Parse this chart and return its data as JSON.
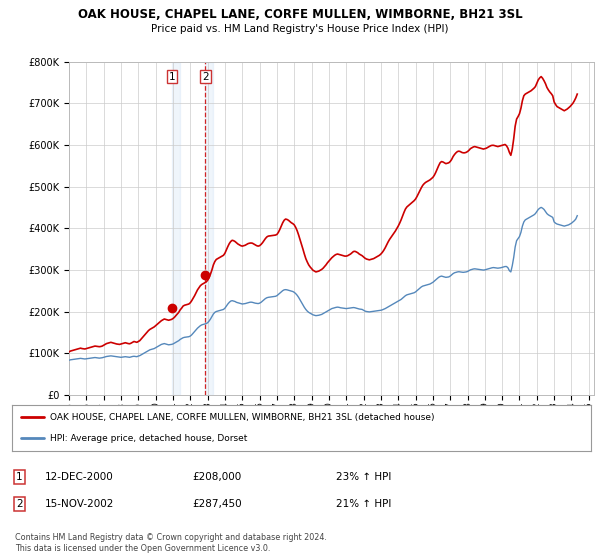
{
  "title": "OAK HOUSE, CHAPEL LANE, CORFE MULLEN, WIMBORNE, BH21 3SL",
  "subtitle": "Price paid vs. HM Land Registry's House Price Index (HPI)",
  "footer": "Contains HM Land Registry data © Crown copyright and database right 2024.\nThis data is licensed under the Open Government Licence v3.0.",
  "legend_line1": "OAK HOUSE, CHAPEL LANE, CORFE MULLEN, WIMBORNE, BH21 3SL (detached house)",
  "legend_line2": "HPI: Average price, detached house, Dorset",
  "sale1_label": "1",
  "sale1_date": "12-DEC-2000",
  "sale1_price": "£208,000",
  "sale1_hpi": "23% ↑ HPI",
  "sale1_year": 2000.917,
  "sale1_value": 208000,
  "sale2_label": "2",
  "sale2_date": "15-NOV-2002",
  "sale2_price": "£287,450",
  "sale2_hpi": "21% ↑ HPI",
  "sale2_year": 2002.833,
  "sale2_value": 287450,
  "red_color": "#cc0000",
  "blue_color": "#5588bb",
  "shade_color": "#ddeeff",
  "background_color": "#ffffff",
  "grid_color": "#cccccc",
  "ylim": [
    0,
    800000
  ],
  "yticks": [
    0,
    100000,
    200000,
    300000,
    400000,
    500000,
    600000,
    700000,
    800000
  ],
  "hpi_x": [
    1995.0,
    1995.083,
    1995.167,
    1995.25,
    1995.333,
    1995.417,
    1995.5,
    1995.583,
    1995.667,
    1995.75,
    1995.833,
    1995.917,
    1996.0,
    1996.083,
    1996.167,
    1996.25,
    1996.333,
    1996.417,
    1996.5,
    1996.583,
    1996.667,
    1996.75,
    1996.833,
    1996.917,
    1997.0,
    1997.083,
    1997.167,
    1997.25,
    1997.333,
    1997.417,
    1997.5,
    1997.583,
    1997.667,
    1997.75,
    1997.833,
    1997.917,
    1998.0,
    1998.083,
    1998.167,
    1998.25,
    1998.333,
    1998.417,
    1998.5,
    1998.583,
    1998.667,
    1998.75,
    1998.833,
    1998.917,
    1999.0,
    1999.083,
    1999.167,
    1999.25,
    1999.333,
    1999.417,
    1999.5,
    1999.583,
    1999.667,
    1999.75,
    1999.833,
    1999.917,
    2000.0,
    2000.083,
    2000.167,
    2000.25,
    2000.333,
    2000.417,
    2000.5,
    2000.583,
    2000.667,
    2000.75,
    2000.833,
    2000.917,
    2001.0,
    2001.083,
    2001.167,
    2001.25,
    2001.333,
    2001.417,
    2001.5,
    2001.583,
    2001.667,
    2001.75,
    2001.833,
    2001.917,
    2002.0,
    2002.083,
    2002.167,
    2002.25,
    2002.333,
    2002.417,
    2002.5,
    2002.583,
    2002.667,
    2002.75,
    2002.833,
    2002.917,
    2003.0,
    2003.083,
    2003.167,
    2003.25,
    2003.333,
    2003.417,
    2003.5,
    2003.583,
    2003.667,
    2003.75,
    2003.833,
    2003.917,
    2004.0,
    2004.083,
    2004.167,
    2004.25,
    2004.333,
    2004.417,
    2004.5,
    2004.583,
    2004.667,
    2004.75,
    2004.833,
    2004.917,
    2005.0,
    2005.083,
    2005.167,
    2005.25,
    2005.333,
    2005.417,
    2005.5,
    2005.583,
    2005.667,
    2005.75,
    2005.833,
    2005.917,
    2006.0,
    2006.083,
    2006.167,
    2006.25,
    2006.333,
    2006.417,
    2006.5,
    2006.583,
    2006.667,
    2006.75,
    2006.833,
    2006.917,
    2007.0,
    2007.083,
    2007.167,
    2007.25,
    2007.333,
    2007.417,
    2007.5,
    2007.583,
    2007.667,
    2007.75,
    2007.833,
    2007.917,
    2008.0,
    2008.083,
    2008.167,
    2008.25,
    2008.333,
    2008.417,
    2008.5,
    2008.583,
    2008.667,
    2008.75,
    2008.833,
    2008.917,
    2009.0,
    2009.083,
    2009.167,
    2009.25,
    2009.333,
    2009.417,
    2009.5,
    2009.583,
    2009.667,
    2009.75,
    2009.833,
    2009.917,
    2010.0,
    2010.083,
    2010.167,
    2010.25,
    2010.333,
    2010.417,
    2010.5,
    2010.583,
    2010.667,
    2010.75,
    2010.833,
    2010.917,
    2011.0,
    2011.083,
    2011.167,
    2011.25,
    2011.333,
    2011.417,
    2011.5,
    2011.583,
    2011.667,
    2011.75,
    2011.833,
    2011.917,
    2012.0,
    2012.083,
    2012.167,
    2012.25,
    2012.333,
    2012.417,
    2012.5,
    2012.583,
    2012.667,
    2012.75,
    2012.833,
    2012.917,
    2013.0,
    2013.083,
    2013.167,
    2013.25,
    2013.333,
    2013.417,
    2013.5,
    2013.583,
    2013.667,
    2013.75,
    2013.833,
    2013.917,
    2014.0,
    2014.083,
    2014.167,
    2014.25,
    2014.333,
    2014.417,
    2014.5,
    2014.583,
    2014.667,
    2014.75,
    2014.833,
    2014.917,
    2015.0,
    2015.083,
    2015.167,
    2015.25,
    2015.333,
    2015.417,
    2015.5,
    2015.583,
    2015.667,
    2015.75,
    2015.833,
    2015.917,
    2016.0,
    2016.083,
    2016.167,
    2016.25,
    2016.333,
    2016.417,
    2016.5,
    2016.583,
    2016.667,
    2016.75,
    2016.833,
    2016.917,
    2017.0,
    2017.083,
    2017.167,
    2017.25,
    2017.333,
    2017.417,
    2017.5,
    2017.583,
    2017.667,
    2017.75,
    2017.833,
    2017.917,
    2018.0,
    2018.083,
    2018.167,
    2018.25,
    2018.333,
    2018.417,
    2018.5,
    2018.583,
    2018.667,
    2018.75,
    2018.833,
    2018.917,
    2019.0,
    2019.083,
    2019.167,
    2019.25,
    2019.333,
    2019.417,
    2019.5,
    2019.583,
    2019.667,
    2019.75,
    2019.833,
    2019.917,
    2020.0,
    2020.083,
    2020.167,
    2020.25,
    2020.333,
    2020.417,
    2020.5,
    2020.583,
    2020.667,
    2020.75,
    2020.833,
    2020.917,
    2021.0,
    2021.083,
    2021.167,
    2021.25,
    2021.333,
    2021.417,
    2021.5,
    2021.583,
    2021.667,
    2021.75,
    2021.833,
    2021.917,
    2022.0,
    2022.083,
    2022.167,
    2022.25,
    2022.333,
    2022.417,
    2022.5,
    2022.583,
    2022.667,
    2022.75,
    2022.833,
    2022.917,
    2023.0,
    2023.083,
    2023.167,
    2023.25,
    2023.333,
    2023.417,
    2023.5,
    2023.583,
    2023.667,
    2023.75,
    2023.833,
    2023.917,
    2024.0,
    2024.083,
    2024.167,
    2024.25,
    2024.333
  ],
  "hpi_y": [
    83000,
    84000,
    84500,
    85000,
    85500,
    86000,
    86500,
    87000,
    87500,
    87000,
    86500,
    86000,
    86500,
    87000,
    87500,
    88000,
    88500,
    89000,
    89500,
    89000,
    88500,
    88000,
    88500,
    89000,
    90000,
    91000,
    92000,
    92500,
    93000,
    93500,
    93000,
    92500,
    92000,
    91500,
    91000,
    90500,
    90000,
    90500,
    91000,
    91500,
    91000,
    90500,
    90000,
    91000,
    92000,
    92500,
    92000,
    91500,
    93000,
    94000,
    96000,
    98000,
    100000,
    102000,
    104000,
    106000,
    108000,
    109000,
    110000,
    111000,
    113000,
    115000,
    117000,
    119000,
    121000,
    122000,
    123000,
    122000,
    121000,
    120000,
    120500,
    121000,
    122000,
    124000,
    126000,
    128000,
    130000,
    133000,
    135000,
    137000,
    138000,
    138500,
    139000,
    139500,
    141000,
    144000,
    148000,
    152000,
    156000,
    160000,
    163000,
    166000,
    168000,
    169000,
    170000,
    171000,
    173000,
    177000,
    182000,
    188000,
    194000,
    198000,
    200000,
    201000,
    202000,
    203000,
    204000,
    205000,
    208000,
    213000,
    218000,
    222000,
    225000,
    226000,
    225000,
    224000,
    222000,
    221000,
    220000,
    219000,
    218000,
    218500,
    219000,
    220000,
    221000,
    222000,
    222500,
    222000,
    221000,
    220000,
    219500,
    219000,
    220000,
    222000,
    225000,
    228000,
    231000,
    233000,
    234000,
    234500,
    235000,
    235500,
    236000,
    236500,
    238000,
    241000,
    244000,
    247000,
    250000,
    252000,
    252500,
    252000,
    251000,
    250000,
    249000,
    248000,
    246000,
    243000,
    239000,
    234000,
    228000,
    222000,
    216000,
    210000,
    205000,
    201000,
    198000,
    196000,
    194000,
    192000,
    191000,
    190000,
    190500,
    191000,
    192000,
    193000,
    195000,
    197000,
    199000,
    201000,
    203000,
    205000,
    207000,
    208000,
    209000,
    210000,
    210500,
    210000,
    209000,
    208500,
    208000,
    207500,
    207000,
    207500,
    208000,
    208500,
    209000,
    209500,
    209000,
    208000,
    207000,
    206000,
    205500,
    205000,
    203000,
    201000,
    200000,
    199500,
    199000,
    199500,
    200000,
    200500,
    201000,
    201500,
    202000,
    202500,
    203000,
    204000,
    205500,
    207000,
    209000,
    211000,
    213000,
    215000,
    217000,
    219000,
    221000,
    223000,
    225000,
    227000,
    229000,
    232000,
    235000,
    238000,
    240000,
    241000,
    242000,
    243000,
    244000,
    245000,
    247000,
    250000,
    253000,
    256000,
    259000,
    261000,
    262000,
    263000,
    264000,
    265000,
    266000,
    268000,
    270000,
    273000,
    276000,
    279000,
    282000,
    284000,
    285000,
    284000,
    283000,
    282000,
    282500,
    283000,
    285000,
    288000,
    291000,
    293000,
    294000,
    295000,
    295500,
    295000,
    294500,
    294000,
    294500,
    295000,
    296000,
    298000,
    300000,
    301000,
    302000,
    302500,
    302000,
    301500,
    301000,
    300500,
    300000,
    299500,
    300000,
    301000,
    302000,
    303000,
    304000,
    305000,
    305500,
    305000,
    304500,
    304000,
    304500,
    305000,
    306000,
    307000,
    308000,
    308000,
    305000,
    298000,
    295000,
    310000,
    330000,
    355000,
    370000,
    375000,
    380000,
    390000,
    405000,
    415000,
    420000,
    422000,
    424000,
    426000,
    428000,
    430000,
    432000,
    435000,
    440000,
    445000,
    448000,
    450000,
    448000,
    445000,
    440000,
    435000,
    432000,
    430000,
    428000,
    426000,
    415000,
    412000,
    410000,
    409000,
    408000,
    407000,
    406000,
    405000,
    406000,
    407000,
    408000,
    410000,
    412000,
    415000,
    418000,
    422000,
    430000
  ],
  "price_x": [
    1995.0,
    1995.083,
    1995.167,
    1995.25,
    1995.333,
    1995.417,
    1995.5,
    1995.583,
    1995.667,
    1995.75,
    1995.833,
    1995.917,
    1996.0,
    1996.083,
    1996.167,
    1996.25,
    1996.333,
    1996.417,
    1996.5,
    1996.583,
    1996.667,
    1996.75,
    1996.833,
    1996.917,
    1997.0,
    1997.083,
    1997.167,
    1997.25,
    1997.333,
    1997.417,
    1997.5,
    1997.583,
    1997.667,
    1997.75,
    1997.833,
    1997.917,
    1998.0,
    1998.083,
    1998.167,
    1998.25,
    1998.333,
    1998.417,
    1998.5,
    1998.583,
    1998.667,
    1998.75,
    1998.833,
    1998.917,
    1999.0,
    1999.083,
    1999.167,
    1999.25,
    1999.333,
    1999.417,
    1999.5,
    1999.583,
    1999.667,
    1999.75,
    1999.833,
    1999.917,
    2000.0,
    2000.083,
    2000.167,
    2000.25,
    2000.333,
    2000.417,
    2000.5,
    2000.583,
    2000.667,
    2000.75,
    2000.833,
    2000.917,
    2001.0,
    2001.083,
    2001.167,
    2001.25,
    2001.333,
    2001.417,
    2001.5,
    2001.583,
    2001.667,
    2001.75,
    2001.833,
    2001.917,
    2002.0,
    2002.083,
    2002.167,
    2002.25,
    2002.333,
    2002.417,
    2002.5,
    2002.583,
    2002.667,
    2002.75,
    2002.833,
    2002.917,
    2003.0,
    2003.083,
    2003.167,
    2003.25,
    2003.333,
    2003.417,
    2003.5,
    2003.583,
    2003.667,
    2003.75,
    2003.833,
    2003.917,
    2004.0,
    2004.083,
    2004.167,
    2004.25,
    2004.333,
    2004.417,
    2004.5,
    2004.583,
    2004.667,
    2004.75,
    2004.833,
    2004.917,
    2005.0,
    2005.083,
    2005.167,
    2005.25,
    2005.333,
    2005.417,
    2005.5,
    2005.583,
    2005.667,
    2005.75,
    2005.833,
    2005.917,
    2006.0,
    2006.083,
    2006.167,
    2006.25,
    2006.333,
    2006.417,
    2006.5,
    2006.583,
    2006.667,
    2006.75,
    2006.833,
    2006.917,
    2007.0,
    2007.083,
    2007.167,
    2007.25,
    2007.333,
    2007.417,
    2007.5,
    2007.583,
    2007.667,
    2007.75,
    2007.833,
    2007.917,
    2008.0,
    2008.083,
    2008.167,
    2008.25,
    2008.333,
    2008.417,
    2008.5,
    2008.583,
    2008.667,
    2008.75,
    2008.833,
    2008.917,
    2009.0,
    2009.083,
    2009.167,
    2009.25,
    2009.333,
    2009.417,
    2009.5,
    2009.583,
    2009.667,
    2009.75,
    2009.833,
    2009.917,
    2010.0,
    2010.083,
    2010.167,
    2010.25,
    2010.333,
    2010.417,
    2010.5,
    2010.583,
    2010.667,
    2010.75,
    2010.833,
    2010.917,
    2011.0,
    2011.083,
    2011.167,
    2011.25,
    2011.333,
    2011.417,
    2011.5,
    2011.583,
    2011.667,
    2011.75,
    2011.833,
    2011.917,
    2012.0,
    2012.083,
    2012.167,
    2012.25,
    2012.333,
    2012.417,
    2012.5,
    2012.583,
    2012.667,
    2012.75,
    2012.833,
    2012.917,
    2013.0,
    2013.083,
    2013.167,
    2013.25,
    2013.333,
    2013.417,
    2013.5,
    2013.583,
    2013.667,
    2013.75,
    2013.833,
    2013.917,
    2014.0,
    2014.083,
    2014.167,
    2014.25,
    2014.333,
    2014.417,
    2014.5,
    2014.583,
    2014.667,
    2014.75,
    2014.833,
    2014.917,
    2015.0,
    2015.083,
    2015.167,
    2015.25,
    2015.333,
    2015.417,
    2015.5,
    2015.583,
    2015.667,
    2015.75,
    2015.833,
    2015.917,
    2016.0,
    2016.083,
    2016.167,
    2016.25,
    2016.333,
    2016.417,
    2016.5,
    2016.583,
    2016.667,
    2016.75,
    2016.833,
    2016.917,
    2017.0,
    2017.083,
    2017.167,
    2017.25,
    2017.333,
    2017.417,
    2017.5,
    2017.583,
    2017.667,
    2017.75,
    2017.833,
    2017.917,
    2018.0,
    2018.083,
    2018.167,
    2018.25,
    2018.333,
    2018.417,
    2018.5,
    2018.583,
    2018.667,
    2018.75,
    2018.833,
    2018.917,
    2019.0,
    2019.083,
    2019.167,
    2019.25,
    2019.333,
    2019.417,
    2019.5,
    2019.583,
    2019.667,
    2019.75,
    2019.833,
    2019.917,
    2020.0,
    2020.083,
    2020.167,
    2020.25,
    2020.333,
    2020.417,
    2020.5,
    2020.583,
    2020.667,
    2020.75,
    2020.833,
    2020.917,
    2021.0,
    2021.083,
    2021.167,
    2021.25,
    2021.333,
    2021.417,
    2021.5,
    2021.583,
    2021.667,
    2021.75,
    2021.833,
    2021.917,
    2022.0,
    2022.083,
    2022.167,
    2022.25,
    2022.333,
    2022.417,
    2022.5,
    2022.583,
    2022.667,
    2022.75,
    2022.833,
    2022.917,
    2023.0,
    2023.083,
    2023.167,
    2023.25,
    2023.333,
    2023.417,
    2023.5,
    2023.583,
    2023.667,
    2023.75,
    2023.833,
    2023.917,
    2024.0,
    2024.083,
    2024.167,
    2024.25,
    2024.333
  ],
  "price_y": [
    103000,
    105000,
    106000,
    107000,
    108000,
    109000,
    110000,
    111000,
    112000,
    111000,
    110500,
    110000,
    111000,
    112000,
    113000,
    114000,
    115000,
    116000,
    117000,
    116500,
    116000,
    115500,
    116000,
    117000,
    119000,
    121000,
    123000,
    124000,
    125000,
    126000,
    125000,
    124000,
    123000,
    122000,
    121500,
    121000,
    122000,
    123000,
    124000,
    125000,
    124000,
    123000,
    122500,
    124000,
    126000,
    128000,
    127000,
    126000,
    128000,
    130000,
    134000,
    138000,
    142000,
    146000,
    150000,
    154000,
    157000,
    159000,
    161000,
    163000,
    166000,
    169000,
    172000,
    175000,
    178000,
    180000,
    182000,
    181000,
    180000,
    179000,
    180000,
    181000,
    183000,
    186000,
    190000,
    194000,
    198000,
    204000,
    208000,
    213000,
    215000,
    216000,
    217000,
    218000,
    221000,
    226000,
    232000,
    238000,
    245000,
    252000,
    257000,
    262000,
    265000,
    267000,
    269000,
    271000,
    275000,
    281000,
    290000,
    300000,
    312000,
    320000,
    325000,
    327000,
    329000,
    331000,
    333000,
    335000,
    340000,
    348000,
    356000,
    363000,
    368000,
    371000,
    370000,
    368000,
    365000,
    362000,
    360000,
    358000,
    357000,
    358000,
    359000,
    361000,
    363000,
    364000,
    364500,
    364000,
    362000,
    360000,
    358000,
    357000,
    358000,
    361000,
    365000,
    370000,
    375000,
    379000,
    381000,
    381500,
    382000,
    382500,
    383000,
    383500,
    385000,
    390000,
    397000,
    405000,
    413000,
    419000,
    422000,
    421000,
    419000,
    416000,
    413000,
    411000,
    408000,
    402000,
    394000,
    384000,
    373000,
    362000,
    350000,
    338000,
    327000,
    319000,
    312000,
    307000,
    303000,
    299000,
    297000,
    295000,
    296000,
    297000,
    299000,
    301000,
    304000,
    308000,
    312000,
    317000,
    321000,
    325000,
    329000,
    332000,
    335000,
    337000,
    338000,
    337000,
    336000,
    335000,
    334000,
    333000,
    333000,
    334000,
    336000,
    338000,
    341000,
    344000,
    344500,
    343000,
    341000,
    338000,
    336000,
    334000,
    331000,
    328000,
    326000,
    325000,
    324000,
    325000,
    326000,
    327000,
    329000,
    331000,
    333000,
    335000,
    338000,
    342000,
    347000,
    353000,
    360000,
    367000,
    373000,
    378000,
    383000,
    388000,
    393000,
    399000,
    405000,
    412000,
    420000,
    429000,
    438000,
    446000,
    451000,
    454000,
    457000,
    460000,
    463000,
    466000,
    470000,
    476000,
    483000,
    490000,
    497000,
    503000,
    507000,
    510000,
    512000,
    514000,
    516000,
    519000,
    522000,
    527000,
    534000,
    542000,
    550000,
    557000,
    560000,
    559000,
    557000,
    555000,
    556000,
    557000,
    560000,
    565000,
    572000,
    577000,
    581000,
    584000,
    585000,
    584000,
    582000,
    581000,
    581000,
    582000,
    584000,
    587000,
    591000,
    593000,
    595000,
    596000,
    595000,
    594000,
    593000,
    592000,
    591000,
    590000,
    591000,
    592000,
    594000,
    596000,
    598000,
    599000,
    599000,
    598000,
    597000,
    596000,
    597000,
    598000,
    599000,
    600000,
    601000,
    598000,
    592000,
    582000,
    575000,
    590000,
    615000,
    645000,
    662000,
    668000,
    675000,
    688000,
    706000,
    718000,
    722000,
    724000,
    726000,
    728000,
    730000,
    733000,
    736000,
    740000,
    748000,
    756000,
    761000,
    764000,
    760000,
    754000,
    747000,
    738000,
    732000,
    727000,
    723000,
    718000,
    703000,
    697000,
    692000,
    690000,
    688000,
    686000,
    684000,
    682000,
    684000,
    686000,
    689000,
    692000,
    696000,
    700000,
    706000,
    713000,
    722000
  ],
  "xticks": [
    1995,
    1996,
    1997,
    1998,
    1999,
    2000,
    2001,
    2002,
    2003,
    2004,
    2005,
    2006,
    2007,
    2008,
    2009,
    2010,
    2011,
    2012,
    2013,
    2014,
    2015,
    2016,
    2017,
    2018,
    2019,
    2020,
    2021,
    2022,
    2023,
    2024,
    2025
  ]
}
